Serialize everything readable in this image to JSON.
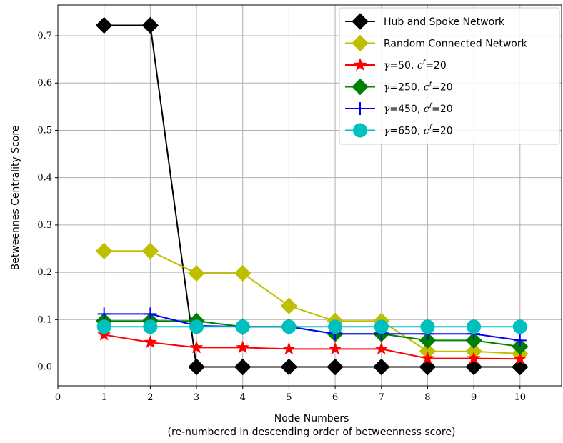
{
  "chart_data": {
    "type": "line",
    "xlabel": "Node Numbers",
    "xlabel_line2": "(re-numbered in descending order of betweenness score)",
    "ylabel": "Betweennes Centrality Score",
    "xlim": [
      0,
      10.9
    ],
    "ylim": [
      -0.04,
      0.765
    ],
    "xticks": [
      "0",
      "1",
      "2",
      "3",
      "4",
      "5",
      "6",
      "7",
      "8",
      "9",
      "10"
    ],
    "yticks": [
      "0.0",
      "0.1",
      "0.2",
      "0.3",
      "0.4",
      "0.5",
      "0.6",
      "0.7"
    ],
    "grid": true,
    "legend_position": "top-right",
    "x": [
      1,
      2,
      3,
      4,
      5,
      6,
      7,
      8,
      9,
      10
    ],
    "series": [
      {
        "name": "Hub and Spoke Network",
        "color": "#000000",
        "marker": "diamond",
        "values": [
          0.722,
          0.722,
          0.0,
          0.0,
          0.0,
          0.0,
          0.0,
          0.0,
          0.0,
          0.0
        ]
      },
      {
        "name": "Random Connected Network",
        "color": "#bfbf00",
        "marker": "diamond",
        "values": [
          0.245,
          0.245,
          0.198,
          0.198,
          0.129,
          0.097,
          0.097,
          0.033,
          0.033,
          0.028
        ]
      },
      {
        "name": "γ=50, c^f=20",
        "color": "#ff0000",
        "marker": "star",
        "values": [
          0.068,
          0.052,
          0.041,
          0.041,
          0.038,
          0.038,
          0.038,
          0.018,
          0.018,
          0.017
        ]
      },
      {
        "name": "γ=250, c^f=20",
        "color": "#008000",
        "marker": "diamond",
        "values": [
          0.097,
          0.097,
          0.097,
          0.085,
          0.085,
          0.07,
          0.07,
          0.056,
          0.056,
          0.043
        ]
      },
      {
        "name": "γ=450, c^f=20",
        "color": "#0000ff",
        "marker": "plus",
        "values": [
          0.112,
          0.112,
          0.087,
          0.085,
          0.085,
          0.07,
          0.07,
          0.07,
          0.07,
          0.056
        ]
      },
      {
        "name": "γ=650, c^f=20",
        "color": "#00bfbf",
        "marker": "circle",
        "values": [
          0.085,
          0.085,
          0.085,
          0.085,
          0.085,
          0.085,
          0.085,
          0.085,
          0.085,
          0.085
        ]
      }
    ],
    "legend_labels": [
      {
        "prefix": "Hub and Spoke Network"
      },
      {
        "prefix": "Random Connected Network"
      },
      {
        "gamma": "γ",
        "eq": "=50, ",
        "c": "c",
        "sup": "f",
        "tail": "=20"
      },
      {
        "gamma": "γ",
        "eq": "=250, ",
        "c": "c",
        "sup": "f",
        "tail": "=20"
      },
      {
        "gamma": "γ",
        "eq": "=450, ",
        "c": "c",
        "sup": "f",
        "tail": "=20"
      },
      {
        "gamma": "γ",
        "eq": "=650, ",
        "c": "c",
        "sup": "f",
        "tail": "=20"
      }
    ]
  }
}
